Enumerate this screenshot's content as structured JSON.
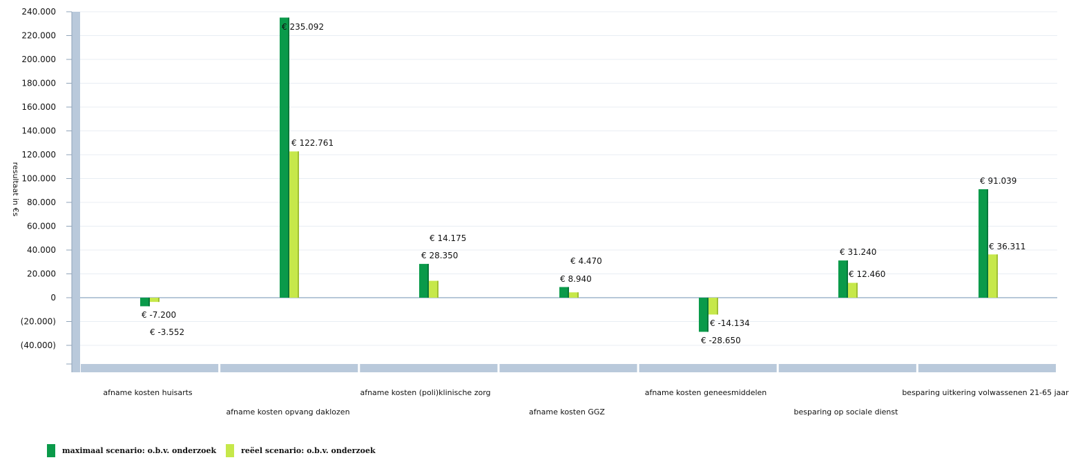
{
  "chart_data": {
    "type": "bar",
    "ylabel": "resultaat in €s",
    "ylim": [
      -50000,
      240000
    ],
    "yticks": [
      240000,
      220000,
      200000,
      180000,
      160000,
      140000,
      120000,
      100000,
      80000,
      60000,
      40000,
      20000,
      0,
      -20000,
      -40000
    ],
    "ytick_labels": [
      "240.000",
      "220.000",
      "200.000",
      "180.000",
      "160.000",
      "140.000",
      "120.000",
      "100.000",
      "80.000",
      "60.000",
      "40.000",
      "20.000",
      "0",
      "(20.000)",
      "(40.000)"
    ],
    "grid": true,
    "legend_position": "bottom-left",
    "categories": [
      "afname kosten huisarts",
      "afname kosten opvang daklozen",
      "afname kosten (poli)klinische zorg",
      "afname kosten GGZ",
      "afname kosten geneesmiddelen",
      "besparing op sociale dienst",
      "besparing uitkering volwassenen 21-65 jaar"
    ],
    "series": [
      {
        "name": "maximaal scenario: o.b.v. onderzoek",
        "color": "#0a9a4a",
        "values": [
          -7200,
          235092,
          28350,
          8940,
          -28650,
          31240,
          91039
        ],
        "labels": [
          "€ -7.200",
          "€ 235.092",
          "€ 28.350",
          "€ 8.940",
          "€ -28.650",
          "€ 31.240",
          "€ 91.039"
        ]
      },
      {
        "name": "reëel scenario: o.b.v. onderzoek",
        "color": "#c6e84a",
        "values": [
          -3552,
          122761,
          14175,
          4470,
          -14134,
          12460,
          36311
        ],
        "labels": [
          "€ -3.552",
          "€ 122.761",
          "€ 14.175",
          "€ 4.470",
          "€ -14.134",
          "€ 12.460",
          "€ 36.311"
        ]
      }
    ]
  }
}
